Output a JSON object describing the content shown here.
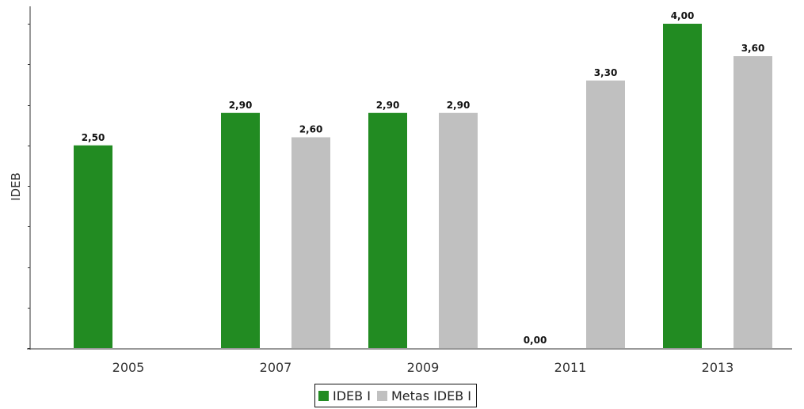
{
  "chart_data": {
    "type": "bar",
    "categories": [
      "2005",
      "2007",
      "2009",
      "2011",
      "2013"
    ],
    "series": [
      {
        "name": "IDEB I",
        "color": "#228b22",
        "values": [
          2.5,
          2.9,
          2.9,
          0.0,
          4.0
        ],
        "labels": [
          "2,50",
          "2,90",
          "2,90",
          "0,00",
          "4,00"
        ]
      },
      {
        "name": "Metas IDEB I",
        "color": "#c0c0c0",
        "values": [
          null,
          2.6,
          2.9,
          3.3,
          3.6
        ],
        "labels": [
          null,
          "2,60",
          "2,90",
          "3,30",
          "3,60"
        ]
      }
    ],
    "ylabel": "IDEB",
    "xlabel": "",
    "ylim": [
      0,
      4
    ],
    "yticks": [
      0,
      0.5,
      1,
      1.5,
      2,
      2.5,
      3,
      3.5,
      4
    ],
    "y_tick_labels_shown": false,
    "grid": false,
    "legend_position": "bottom-center"
  }
}
